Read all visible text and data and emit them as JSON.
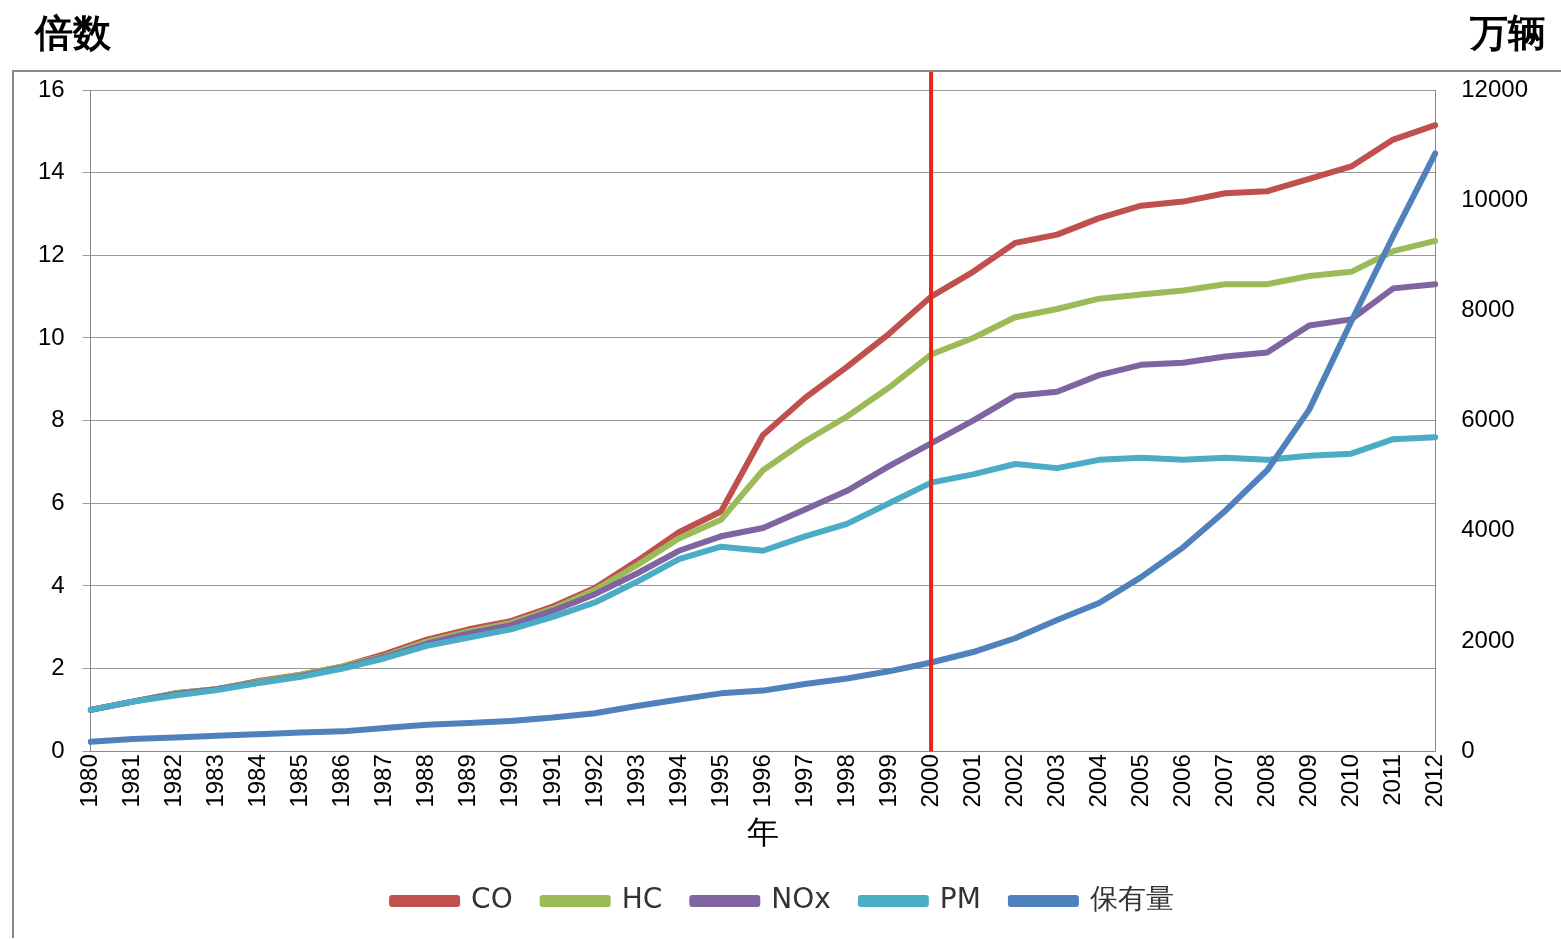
{
  "chart_data": {
    "type": "line",
    "xlabel": "年",
    "ylabel": "倍数",
    "y2label": "万辆",
    "categories": [
      "1980",
      "1981",
      "1982",
      "1983",
      "1984",
      "1985",
      "1986",
      "1987",
      "1988",
      "1989",
      "1990",
      "1991",
      "1992",
      "1993",
      "1994",
      "1995",
      "1996",
      "1997",
      "1998",
      "1999",
      "2000",
      "2001",
      "2002",
      "2003",
      "2004",
      "2005",
      "2006",
      "2007",
      "2008",
      "2009",
      "2010",
      "2011",
      "2012"
    ],
    "series": [
      {
        "name": "CO",
        "color": "#c0504d",
        "values": [
          1.0,
          1.2,
          1.4,
          1.5,
          1.7,
          1.85,
          2.05,
          2.35,
          2.7,
          2.95,
          3.15,
          3.5,
          3.95,
          4.6,
          5.3,
          5.8,
          7.65,
          8.55,
          9.3,
          10.1,
          11.0,
          11.6,
          12.3,
          12.5,
          12.9,
          13.2,
          13.3,
          13.5,
          13.55,
          13.85,
          14.15,
          14.8,
          15.15
        ]
      },
      {
        "name": "HC",
        "color": "#9bbb59",
        "values": [
          1.0,
          1.2,
          1.4,
          1.5,
          1.68,
          1.85,
          2.05,
          2.3,
          2.65,
          2.9,
          3.1,
          3.45,
          3.9,
          4.5,
          5.15,
          5.6,
          6.8,
          7.5,
          8.1,
          8.8,
          9.6,
          10.0,
          10.5,
          10.7,
          10.95,
          11.05,
          11.15,
          11.3,
          11.3,
          11.5,
          11.6,
          12.1,
          12.35
        ]
      },
      {
        "name": "NOx",
        "color": "#8064a2",
        "values": [
          1.0,
          1.2,
          1.38,
          1.5,
          1.66,
          1.82,
          2.02,
          2.28,
          2.6,
          2.85,
          3.05,
          3.4,
          3.8,
          4.3,
          4.85,
          5.2,
          5.4,
          5.85,
          6.3,
          6.9,
          7.45,
          8.0,
          8.6,
          8.7,
          9.1,
          9.35,
          9.4,
          9.55,
          9.65,
          10.3,
          10.45,
          11.2,
          11.3
        ]
      },
      {
        "name": "PM",
        "color": "#4bacc6",
        "values": [
          1.0,
          1.2,
          1.35,
          1.48,
          1.65,
          1.8,
          2.0,
          2.25,
          2.55,
          2.75,
          2.95,
          3.25,
          3.6,
          4.1,
          4.65,
          4.95,
          4.85,
          5.2,
          5.5,
          6.0,
          6.5,
          6.7,
          6.95,
          6.85,
          7.05,
          7.1,
          7.05,
          7.1,
          7.05,
          7.15,
          7.2,
          7.55,
          7.6
        ]
      },
      {
        "name": "保有量",
        "color": "#4f81bd",
        "axis": "y2",
        "values": [
          170,
          220,
          250,
          280,
          310,
          340,
          360,
          420,
          480,
          510,
          550,
          610,
          690,
          820,
          940,
          1050,
          1100,
          1220,
          1320,
          1450,
          1610,
          1800,
          2050,
          2380,
          2690,
          3160,
          3700,
          4360,
          5100,
          6200,
          7800,
          9350,
          10850
        ]
      }
    ],
    "ylim": [
      0,
      16
    ],
    "yticks": [
      0,
      2,
      4,
      6,
      8,
      10,
      12,
      14,
      16
    ],
    "y2lim": [
      0,
      12000
    ],
    "y2ticks": [
      0,
      2000,
      4000,
      6000,
      8000,
      10000,
      12000
    ],
    "ref_lines": [
      {
        "axis": "x",
        "value": "2000",
        "color": "#e8251b"
      }
    ],
    "grid": "y",
    "legend": "bottom",
    "marker": "none",
    "line_style": "solid"
  }
}
